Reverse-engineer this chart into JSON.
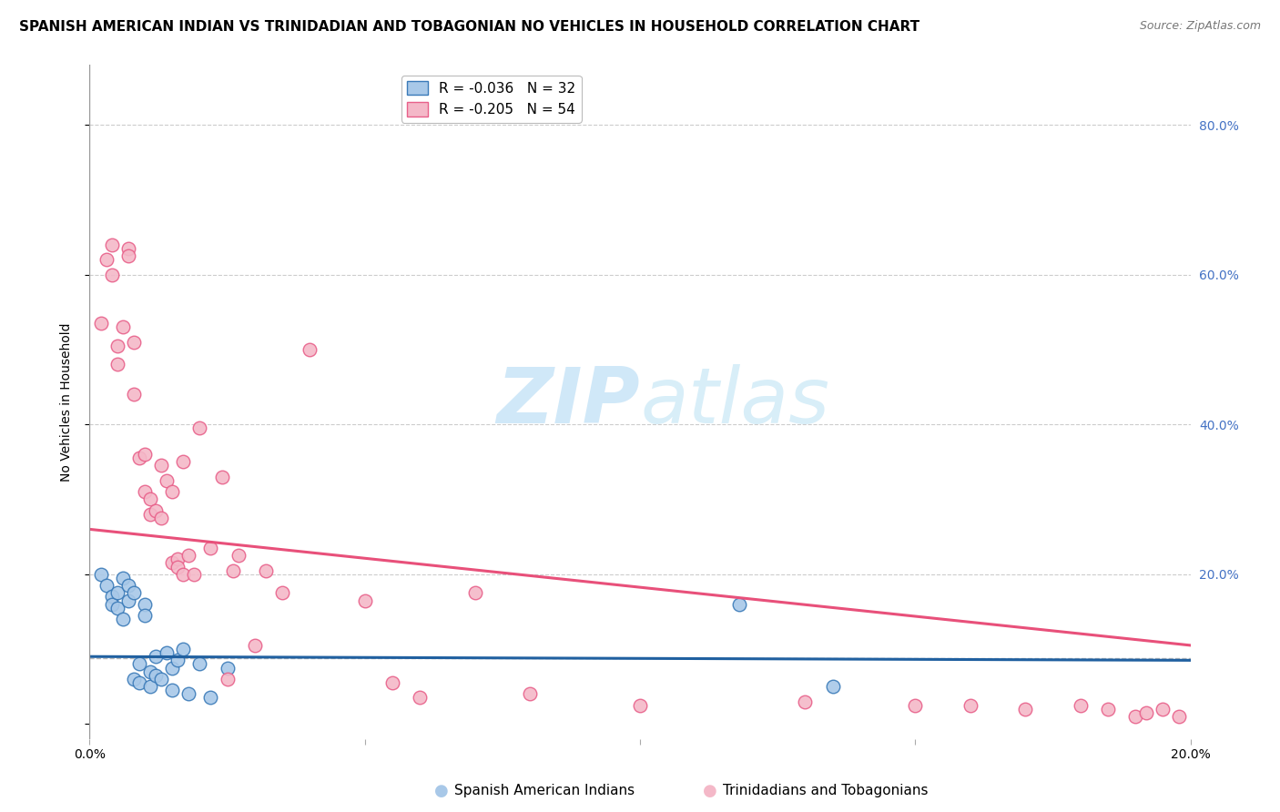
{
  "title": "SPANISH AMERICAN INDIAN VS TRINIDADIAN AND TOBAGONIAN NO VEHICLES IN HOUSEHOLD CORRELATION CHART",
  "source": "Source: ZipAtlas.com",
  "ylabel": "No Vehicles in Household",
  "xlim": [
    0.0,
    0.2
  ],
  "ylim": [
    -0.02,
    0.88
  ],
  "ytick_vals": [
    0.0,
    0.2,
    0.4,
    0.6,
    0.8
  ],
  "xtick_vals": [
    0.0,
    0.05,
    0.1,
    0.15,
    0.2
  ],
  "xtick_labels": [
    "0.0%",
    "",
    "",
    "",
    "20.0%"
  ],
  "right_ytick_labels": [
    "",
    "20.0%",
    "40.0%",
    "60.0%",
    "80.0%"
  ],
  "blue_fill": "#a8c8e8",
  "blue_edge": "#3a7ab8",
  "pink_fill": "#f4b8c8",
  "pink_edge": "#e8608a",
  "blue_line_color": "#2060a0",
  "pink_line_color": "#e8507a",
  "dash_line_color": "#bbbbbb",
  "right_axis_color": "#4472c4",
  "watermark_color": "#d0e8f8",
  "legend_r1": "R = -0.036",
  "legend_n1": "N = 32",
  "legend_r2": "R = -0.205",
  "legend_n2": "N = 54",
  "legend_label1": "Spanish American Indians",
  "legend_label2": "Trinidadians and Tobagonians",
  "blue_scatter_x": [
    0.002,
    0.003,
    0.004,
    0.004,
    0.005,
    0.005,
    0.006,
    0.006,
    0.007,
    0.007,
    0.008,
    0.008,
    0.009,
    0.009,
    0.01,
    0.01,
    0.011,
    0.011,
    0.012,
    0.012,
    0.013,
    0.014,
    0.015,
    0.015,
    0.016,
    0.017,
    0.018,
    0.02,
    0.022,
    0.025,
    0.118,
    0.135
  ],
  "blue_scatter_y": [
    0.2,
    0.185,
    0.17,
    0.16,
    0.175,
    0.155,
    0.195,
    0.14,
    0.185,
    0.165,
    0.175,
    0.06,
    0.08,
    0.055,
    0.16,
    0.145,
    0.05,
    0.07,
    0.09,
    0.065,
    0.06,
    0.095,
    0.075,
    0.045,
    0.085,
    0.1,
    0.04,
    0.08,
    0.035,
    0.075,
    0.16,
    0.05
  ],
  "pink_scatter_x": [
    0.002,
    0.003,
    0.004,
    0.004,
    0.005,
    0.005,
    0.006,
    0.007,
    0.007,
    0.008,
    0.008,
    0.009,
    0.01,
    0.01,
    0.011,
    0.011,
    0.012,
    0.013,
    0.013,
    0.014,
    0.015,
    0.015,
    0.016,
    0.016,
    0.017,
    0.017,
    0.018,
    0.019,
    0.02,
    0.022,
    0.024,
    0.025,
    0.026,
    0.027,
    0.03,
    0.032,
    0.035,
    0.04,
    0.05,
    0.055,
    0.06,
    0.07,
    0.08,
    0.1,
    0.13,
    0.15,
    0.16,
    0.17,
    0.18,
    0.185,
    0.19,
    0.192,
    0.195,
    0.198
  ],
  "pink_scatter_y": [
    0.535,
    0.62,
    0.6,
    0.64,
    0.505,
    0.48,
    0.53,
    0.635,
    0.625,
    0.51,
    0.44,
    0.355,
    0.36,
    0.31,
    0.28,
    0.3,
    0.285,
    0.345,
    0.275,
    0.325,
    0.31,
    0.215,
    0.22,
    0.21,
    0.35,
    0.2,
    0.225,
    0.2,
    0.395,
    0.235,
    0.33,
    0.06,
    0.205,
    0.225,
    0.105,
    0.205,
    0.175,
    0.5,
    0.165,
    0.055,
    0.035,
    0.175,
    0.04,
    0.025,
    0.03,
    0.025,
    0.025,
    0.02,
    0.025,
    0.02,
    0.01,
    0.015,
    0.02,
    0.01
  ],
  "blue_trend_x": [
    0.0,
    0.2
  ],
  "blue_trend_y": [
    0.09,
    0.085
  ],
  "pink_trend_x": [
    0.0,
    0.2
  ],
  "pink_trend_y": [
    0.26,
    0.105
  ],
  "dash_line_y": 0.088,
  "background_color": "#ffffff",
  "grid_color": "#cccccc",
  "title_fontsize": 11,
  "axis_label_fontsize": 10,
  "tick_fontsize": 10,
  "legend_fontsize": 11,
  "marker_size": 110
}
